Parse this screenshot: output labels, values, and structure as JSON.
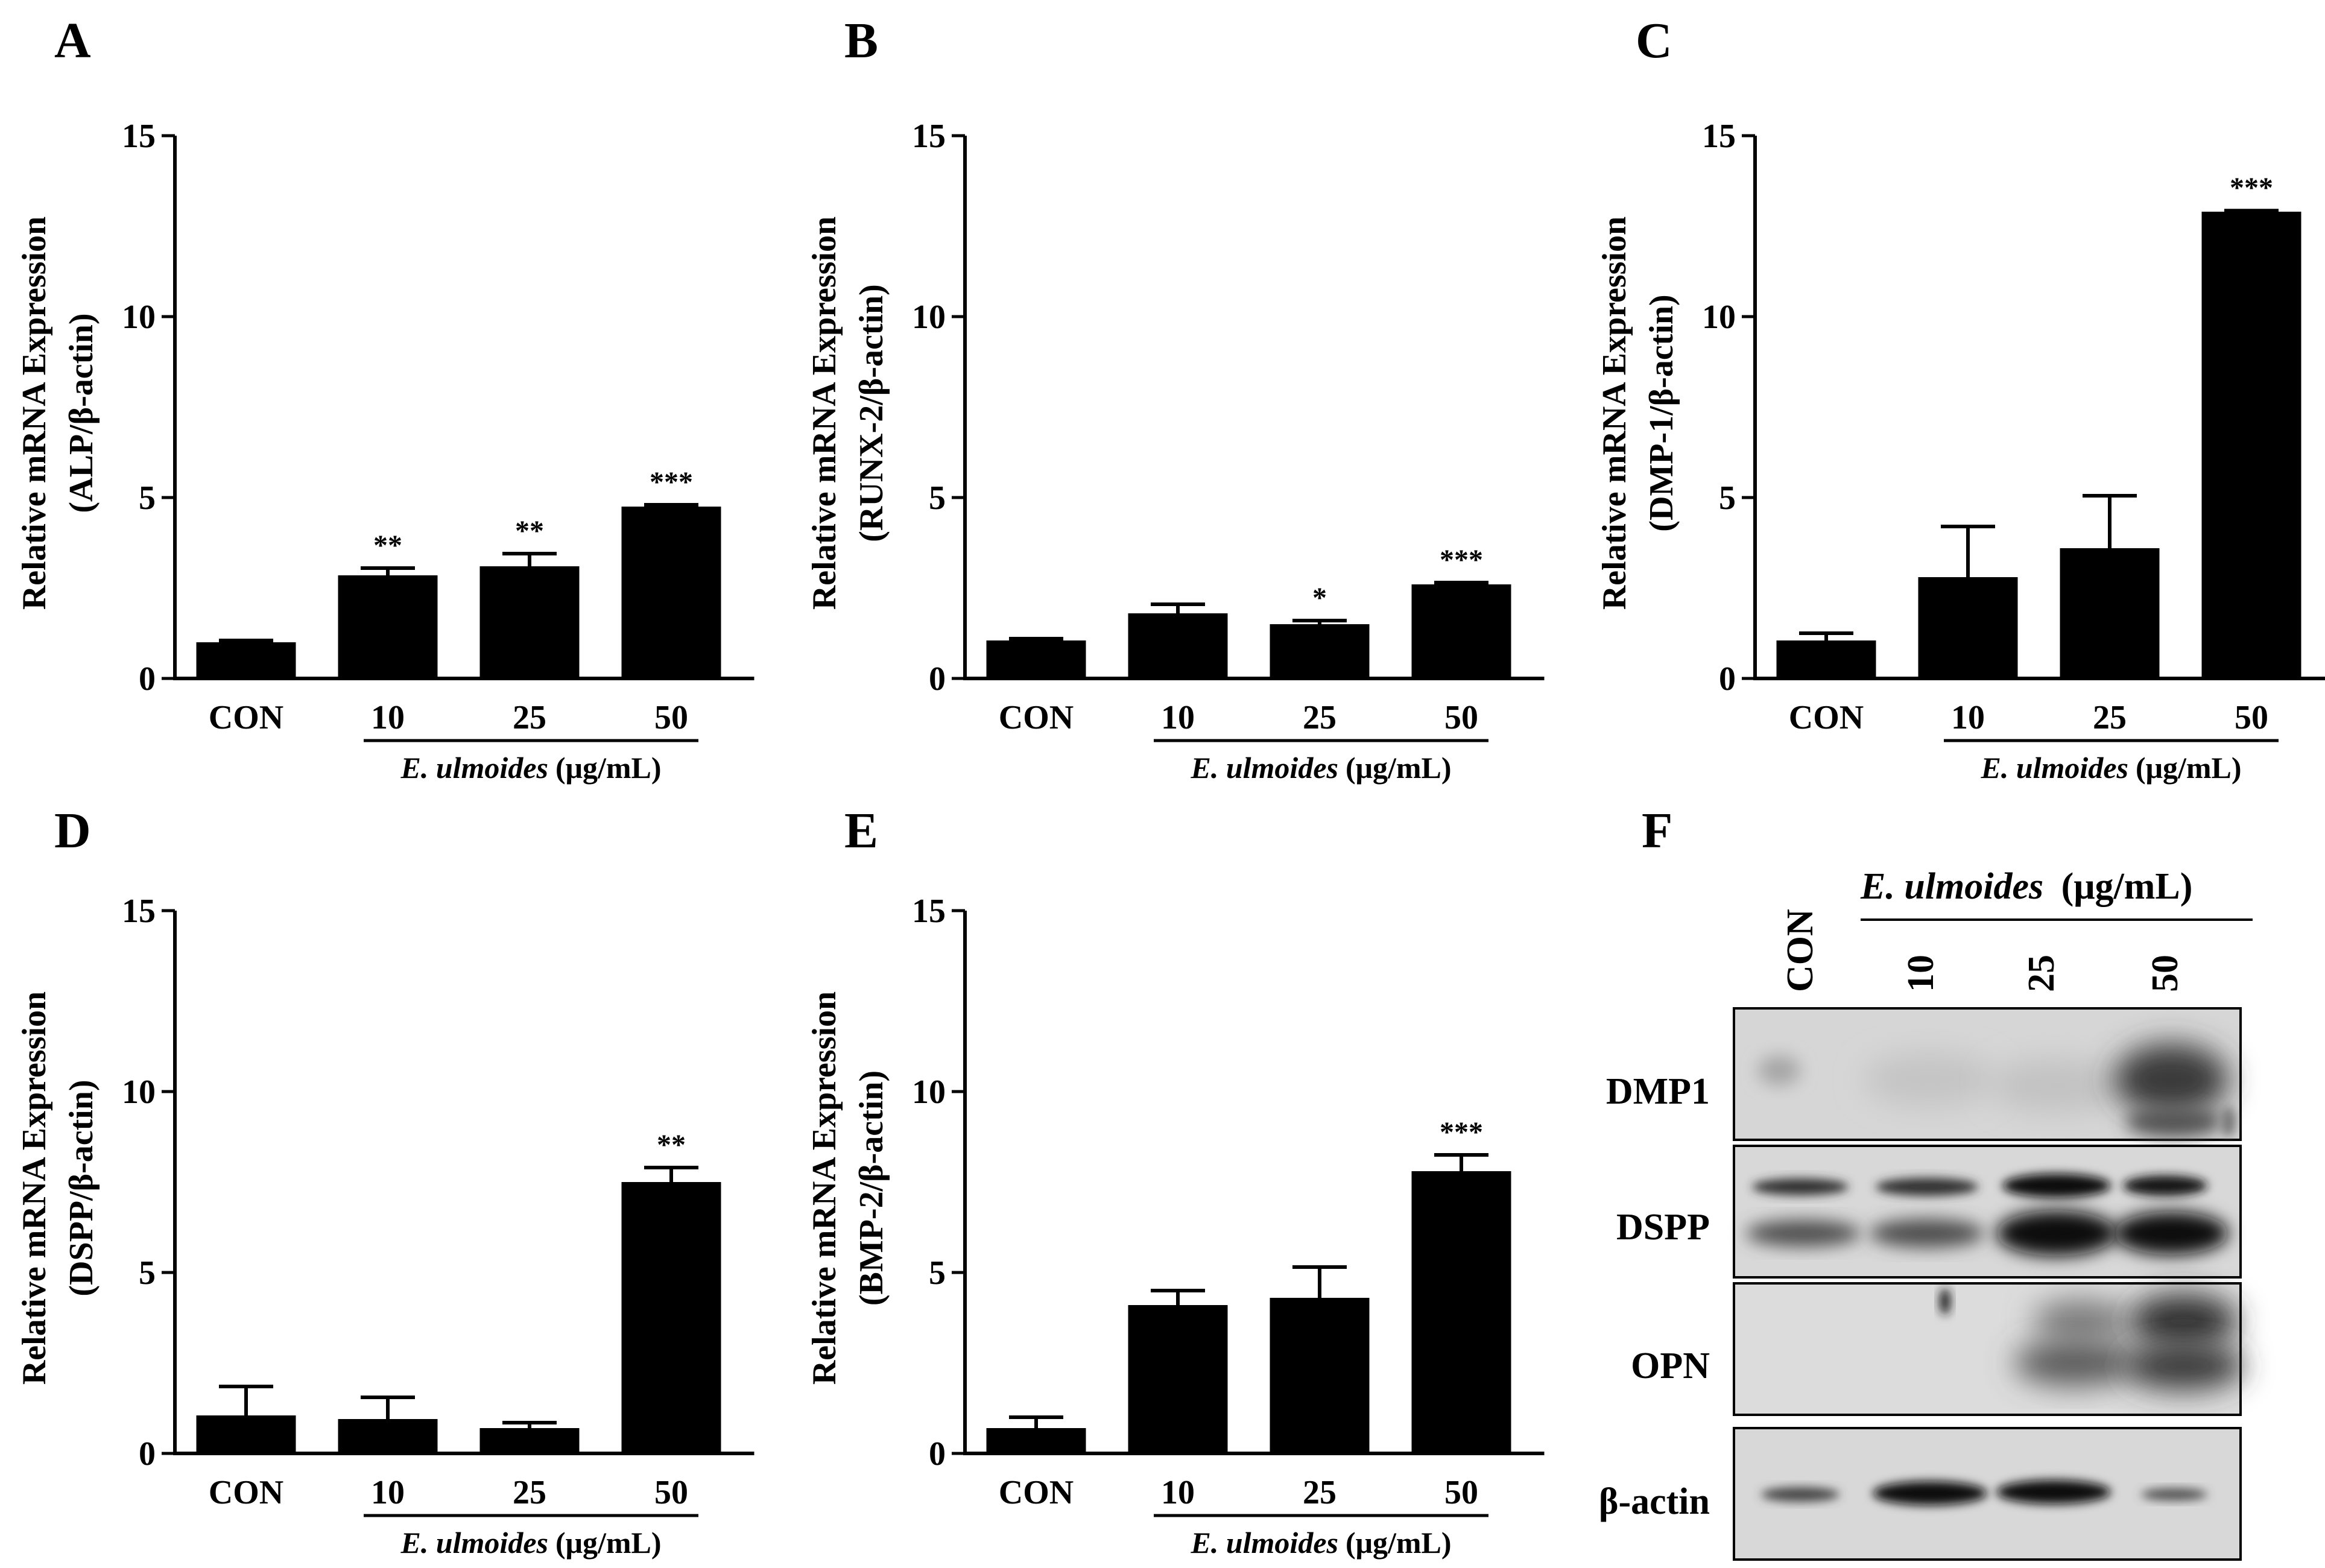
{
  "panels": [
    {
      "letter": "A"
    },
    {
      "letter": "B"
    },
    {
      "letter": "C"
    },
    {
      "letter": "D"
    },
    {
      "letter": "E"
    },
    {
      "letter": "F"
    }
  ],
  "chart_data": [
    {
      "type": "bar",
      "categories": [
        "CON",
        "10",
        "25",
        "50"
      ],
      "values": [
        1.0,
        2.85,
        3.1,
        4.75
      ],
      "errors": [
        0.05,
        0.2,
        0.35,
        0.05
      ],
      "significance": [
        "",
        "**",
        "**",
        "***"
      ],
      "ylabel": [
        "Relative mRNA Expression",
        "(ALP/β-actin)"
      ],
      "xgroup_italic": "E. ulmoides",
      "xgroup_unit": "(μg/mL)",
      "yticks": [
        0,
        5,
        10,
        15
      ],
      "ylim": [
        0,
        15
      ]
    },
    {
      "type": "bar",
      "categories": [
        "CON",
        "10",
        "25",
        "50"
      ],
      "values": [
        1.05,
        1.8,
        1.5,
        2.6
      ],
      "errors": [
        0.05,
        0.25,
        0.1,
        0.05
      ],
      "significance": [
        "",
        "",
        "*",
        "***"
      ],
      "ylabel": [
        "Relative mRNA Expression",
        "(RUNX-2/β-actin)"
      ],
      "xgroup_italic": "E. ulmoides",
      "xgroup_unit": "(μg/mL)",
      "yticks": [
        0,
        5,
        10,
        15
      ],
      "ylim": [
        0,
        15
      ]
    },
    {
      "type": "bar",
      "categories": [
        "CON",
        "10",
        "25",
        "50"
      ],
      "values": [
        1.05,
        2.8,
        3.6,
        12.9
      ],
      "errors": [
        0.2,
        1.4,
        1.45,
        0.03
      ],
      "significance": [
        "",
        "",
        "",
        "***"
      ],
      "ylabel": [
        "Relative mRNA Expression",
        "(DMP-1/β-actin)"
      ],
      "xgroup_italic": "E. ulmoides",
      "xgroup_unit": "(μg/mL)",
      "yticks": [
        0,
        5,
        10,
        15
      ],
      "ylim": [
        0,
        15
      ]
    },
    {
      "type": "bar",
      "categories": [
        "CON",
        "10",
        "25",
        "50"
      ],
      "values": [
        1.05,
        0.95,
        0.7,
        7.5
      ],
      "errors": [
        0.8,
        0.6,
        0.15,
        0.4
      ],
      "significance": [
        "",
        "",
        "",
        "**"
      ],
      "ylabel": [
        "Relative mRNA Expression",
        "(DSPP/β-actin)"
      ],
      "xgroup_italic": "E. ulmoides",
      "xgroup_unit": "(μg/mL)",
      "yticks": [
        0,
        5,
        10,
        15
      ],
      "ylim": [
        0,
        15
      ]
    },
    {
      "type": "bar",
      "categories": [
        "CON",
        "10",
        "25",
        "50"
      ],
      "values": [
        0.7,
        4.1,
        4.3,
        7.8
      ],
      "errors": [
        0.3,
        0.4,
        0.85,
        0.45
      ],
      "significance": [
        "",
        "",
        "",
        "***"
      ],
      "ylabel": [
        "Relative mRNA Expression",
        "(BMP-2/β-actin)"
      ],
      "xgroup_italic": "E. ulmoides",
      "xgroup_unit": "(μg/mL)",
      "yticks": [
        0,
        5,
        10,
        15
      ],
      "ylim": [
        0,
        15
      ]
    }
  ],
  "blot": {
    "header_italic": "E. ulmoides",
    "header_unit": "(μg/mL)",
    "lanes": [
      "CON",
      "10",
      "25",
      "50"
    ],
    "rows": [
      "DMP1",
      "DSPP",
      "OPN",
      "β-actin"
    ]
  }
}
